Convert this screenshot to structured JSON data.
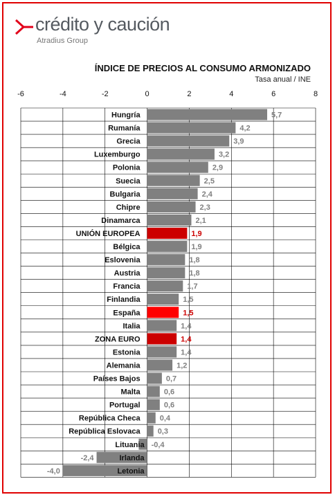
{
  "logo": {
    "brand": "crédito y caución",
    "sub": "Atradius Group",
    "icon": "greater-than-arrow-icon",
    "accent_color": "#e2001a"
  },
  "chart_data": {
    "type": "bar",
    "orientation": "horizontal",
    "title": "ÍNDICE DE PRECIOS AL CONSUMO ARMONIZADO",
    "subtitle": "Tasa anual / INE",
    "xlim": [
      -6,
      8
    ],
    "x_ticks": [
      "-6",
      "-4",
      "-2",
      "0",
      "2",
      "4",
      "6",
      "8"
    ],
    "grid": true,
    "categories": [
      "Hungría",
      "Rumanía",
      "Grecia",
      "Luxemburgo",
      "Polonia",
      "Suecia",
      "Bulgaria",
      "Chipre",
      "Dinamarca",
      "UNIÓN EUROPEA",
      "Bélgica",
      "Eslovenia",
      "Austria",
      "Francia",
      "Finlandia",
      "España",
      "Italia",
      "ZONA EURO",
      "Estonia",
      "Alemania",
      "Países Bajos",
      "Malta",
      "Portugal",
      "República Checa",
      "República Eslovaca",
      "Lituania",
      "Irlanda",
      "Letonia"
    ],
    "values": [
      5.7,
      4.2,
      3.9,
      3.2,
      2.9,
      2.5,
      2.4,
      2.3,
      2.1,
      1.9,
      1.9,
      1.8,
      1.8,
      1.7,
      1.5,
      1.5,
      1.4,
      1.4,
      1.4,
      1.2,
      0.7,
      0.6,
      0.6,
      0.4,
      0.3,
      -0.4,
      -2.4,
      -4.0
    ],
    "value_labels": [
      "5,7",
      "4,2",
      "3,9",
      "3,2",
      "2,9",
      "2,5",
      "2,4",
      "2,3",
      "2,1",
      "1,9",
      "1,9",
      "1,8",
      "1,8",
      "1,7",
      "1,5",
      "1,5",
      "1,4",
      "1,4",
      "1,4",
      "1,2",
      "0,7",
      "0,6",
      "0,6",
      "0,4",
      "0,3",
      "-0,4",
      "-2,4",
      "-4,0"
    ],
    "highlight": {
      "UNIÓN EUROPEA": "#cc0000",
      "España": "#ff0000",
      "ZONA EURO": "#cc0000"
    },
    "colors": {
      "bar": "#808080",
      "value_label": "#808080",
      "highlight_label": "#cc0000",
      "grid": "#000000"
    }
  }
}
